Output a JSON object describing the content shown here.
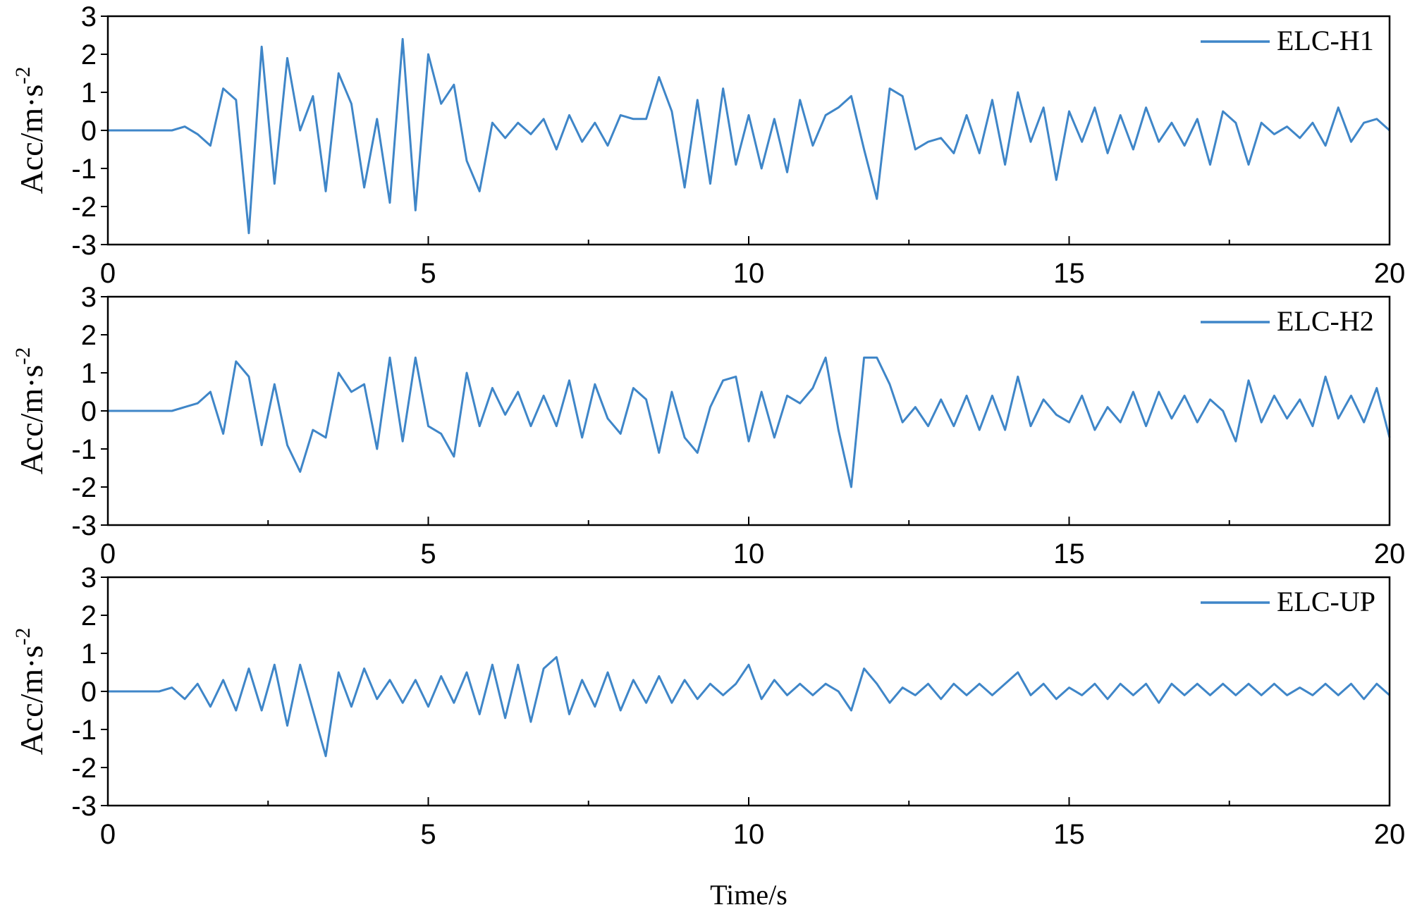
{
  "chart_data": [
    {
      "type": "line",
      "x": [
        0,
        0.2,
        0.4,
        0.6,
        0.8,
        1,
        1.2,
        1.4,
        1.6,
        1.8,
        2,
        2.2,
        2.4,
        2.6,
        2.8,
        3,
        3.2,
        3.4,
        3.6,
        3.8,
        4,
        4.2,
        4.4,
        4.6,
        4.8,
        5,
        5.2,
        5.4,
        5.6,
        5.8,
        6,
        6.2,
        6.4,
        6.6,
        6.8,
        7,
        7.2,
        7.4,
        7.6,
        7.8,
        8,
        8.2,
        8.4,
        8.6,
        8.8,
        9,
        9.2,
        9.4,
        9.6,
        9.8,
        10,
        10.2,
        10.4,
        10.6,
        10.8,
        11,
        11.2,
        11.4,
        11.6,
        11.8,
        12,
        12.2,
        12.4,
        12.6,
        12.8,
        13,
        13.2,
        13.4,
        13.6,
        13.8,
        14,
        14.2,
        14.4,
        14.6,
        14.8,
        15,
        15.2,
        15.4,
        15.6,
        15.8,
        16,
        16.2,
        16.4,
        16.6,
        16.8,
        17,
        17.2,
        17.4,
        17.6,
        17.8,
        18,
        18.2,
        18.4,
        18.6,
        18.8,
        19,
        19.2,
        19.4,
        19.6,
        19.8,
        20
      ],
      "series": [
        {
          "name": "ELC-H1",
          "color": "#3f86c8",
          "values": [
            0,
            0,
            0,
            0,
            0,
            0,
            0.1,
            -0.1,
            -0.4,
            1.1,
            0.8,
            -2.7,
            2.2,
            -1.4,
            1.9,
            0.0,
            0.9,
            -1.6,
            1.5,
            0.7,
            -1.5,
            0.3,
            -1.9,
            2.4,
            -2.1,
            2.0,
            0.7,
            1.2,
            -0.8,
            -1.6,
            0.2,
            -0.2,
            0.2,
            -0.1,
            0.3,
            -0.5,
            0.4,
            -0.3,
            0.2,
            -0.4,
            0.4,
            0.3,
            0.3,
            1.4,
            0.5,
            -1.5,
            0.8,
            -1.4,
            1.1,
            -0.9,
            0.4,
            -1.0,
            0.3,
            -1.1,
            0.8,
            -0.4,
            0.4,
            0.6,
            0.9,
            -0.5,
            -1.8,
            1.1,
            0.9,
            -0.5,
            -0.3,
            -0.2,
            -0.6,
            0.4,
            -0.6,
            0.8,
            -0.9,
            1.0,
            -0.3,
            0.6,
            -1.3,
            0.5,
            -0.3,
            0.6,
            -0.6,
            0.4,
            -0.5,
            0.6,
            -0.3,
            0.2,
            -0.4,
            0.3,
            -0.9,
            0.5,
            0.2,
            -0.9,
            0.2,
            -0.1,
            0.1,
            -0.2,
            0.2,
            -0.4,
            0.6,
            -0.3,
            0.2,
            0.3,
            0.0
          ]
        }
      ],
      "xlim": [
        0,
        20
      ],
      "xticks": [
        0,
        5,
        10,
        15,
        20
      ],
      "xminorticks": [
        2.5,
        7.5,
        12.5,
        17.5
      ],
      "ylim": [
        -3,
        3
      ],
      "yticks": [
        -3,
        -2,
        -1,
        0,
        1,
        2,
        3
      ],
      "ylabel": "Acc/m·s",
      "ylabel_superscript": "-2",
      "legend": "upper right"
    },
    {
      "type": "line",
      "x": [
        0,
        0.2,
        0.4,
        0.6,
        0.8,
        1,
        1.2,
        1.4,
        1.6,
        1.8,
        2,
        2.2,
        2.4,
        2.6,
        2.8,
        3,
        3.2,
        3.4,
        3.6,
        3.8,
        4,
        4.2,
        4.4,
        4.6,
        4.8,
        5,
        5.2,
        5.4,
        5.6,
        5.8,
        6,
        6.2,
        6.4,
        6.6,
        6.8,
        7,
        7.2,
        7.4,
        7.6,
        7.8,
        8,
        8.2,
        8.4,
        8.6,
        8.8,
        9,
        9.2,
        9.4,
        9.6,
        9.8,
        10,
        10.2,
        10.4,
        10.6,
        10.8,
        11,
        11.2,
        11.4,
        11.6,
        11.8,
        12,
        12.2,
        12.4,
        12.6,
        12.8,
        13,
        13.2,
        13.4,
        13.6,
        13.8,
        14,
        14.2,
        14.4,
        14.6,
        14.8,
        15,
        15.2,
        15.4,
        15.6,
        15.8,
        16,
        16.2,
        16.4,
        16.6,
        16.8,
        17,
        17.2,
        17.4,
        17.6,
        17.8,
        18,
        18.2,
        18.4,
        18.6,
        18.8,
        19,
        19.2,
        19.4,
        19.6,
        19.8,
        20
      ],
      "series": [
        {
          "name": "ELC-H2",
          "color": "#3f86c8",
          "values": [
            0,
            0,
            0,
            0,
            0,
            0,
            0.1,
            0.2,
            0.5,
            -0.6,
            1.3,
            0.9,
            -0.9,
            0.7,
            -0.9,
            -1.6,
            -0.5,
            -0.7,
            1.0,
            0.5,
            0.7,
            -1.0,
            1.4,
            -0.8,
            1.4,
            -0.4,
            -0.6,
            -1.2,
            1.0,
            -0.4,
            0.6,
            -0.1,
            0.5,
            -0.4,
            0.4,
            -0.4,
            0.8,
            -0.7,
            0.7,
            -0.2,
            -0.6,
            0.6,
            0.3,
            -1.1,
            0.5,
            -0.7,
            -1.1,
            0.1,
            0.8,
            0.9,
            -0.8,
            0.5,
            -0.7,
            0.4,
            0.2,
            0.6,
            1.4,
            -0.5,
            -2.0,
            1.4,
            1.4,
            0.7,
            -0.3,
            0.1,
            -0.4,
            0.3,
            -0.4,
            0.4,
            -0.5,
            0.4,
            -0.5,
            0.9,
            -0.4,
            0.3,
            -0.1,
            -0.3,
            0.4,
            -0.5,
            0.1,
            -0.3,
            0.5,
            -0.4,
            0.5,
            -0.2,
            0.4,
            -0.3,
            0.3,
            0.0,
            -0.8,
            0.8,
            -0.3,
            0.4,
            -0.2,
            0.3,
            -0.4,
            0.9,
            -0.2,
            0.4,
            -0.3,
            0.6,
            -0.7
          ]
        }
      ],
      "xlim": [
        0,
        20
      ],
      "xticks": [
        0,
        5,
        10,
        15,
        20
      ],
      "xminorticks": [
        2.5,
        7.5,
        12.5,
        17.5
      ],
      "ylim": [
        -3,
        3
      ],
      "yticks": [
        -3,
        -2,
        -1,
        0,
        1,
        2,
        3
      ],
      "ylabel": "Acc/m·s",
      "ylabel_superscript": "-2",
      "legend": "upper right"
    },
    {
      "type": "line",
      "x": [
        0,
        0.2,
        0.4,
        0.6,
        0.8,
        1,
        1.2,
        1.4,
        1.6,
        1.8,
        2,
        2.2,
        2.4,
        2.6,
        2.8,
        3,
        3.2,
        3.4,
        3.6,
        3.8,
        4,
        4.2,
        4.4,
        4.6,
        4.8,
        5,
        5.2,
        5.4,
        5.6,
        5.8,
        6,
        6.2,
        6.4,
        6.6,
        6.8,
        7,
        7.2,
        7.4,
        7.6,
        7.8,
        8,
        8.2,
        8.4,
        8.6,
        8.8,
        9,
        9.2,
        9.4,
        9.6,
        9.8,
        10,
        10.2,
        10.4,
        10.6,
        10.8,
        11,
        11.2,
        11.4,
        11.6,
        11.8,
        12,
        12.2,
        12.4,
        12.6,
        12.8,
        13,
        13.2,
        13.4,
        13.6,
        13.8,
        14,
        14.2,
        14.4,
        14.6,
        14.8,
        15,
        15.2,
        15.4,
        15.6,
        15.8,
        16,
        16.2,
        16.4,
        16.6,
        16.8,
        17,
        17.2,
        17.4,
        17.6,
        17.8,
        18,
        18.2,
        18.4,
        18.6,
        18.8,
        19,
        19.2,
        19.4,
        19.6,
        19.8,
        20
      ],
      "series": [
        {
          "name": "ELC-UP",
          "color": "#3f86c8",
          "values": [
            0,
            0,
            0,
            0,
            0,
            0.1,
            -0.2,
            0.2,
            -0.4,
            0.3,
            -0.5,
            0.6,
            -0.5,
            0.7,
            -0.9,
            0.7,
            -0.5,
            -1.7,
            0.5,
            -0.4,
            0.6,
            -0.2,
            0.3,
            -0.3,
            0.3,
            -0.4,
            0.4,
            -0.3,
            0.5,
            -0.6,
            0.7,
            -0.7,
            0.7,
            -0.8,
            0.6,
            0.9,
            -0.6,
            0.3,
            -0.4,
            0.5,
            -0.5,
            0.3,
            -0.3,
            0.4,
            -0.3,
            0.3,
            -0.2,
            0.2,
            -0.1,
            0.2,
            0.7,
            -0.2,
            0.3,
            -0.1,
            0.2,
            -0.1,
            0.2,
            0.0,
            -0.5,
            0.6,
            0.2,
            -0.3,
            0.1,
            -0.1,
            0.2,
            -0.2,
            0.2,
            -0.1,
            0.2,
            -0.1,
            0.2,
            0.5,
            -0.1,
            0.2,
            -0.2,
            0.1,
            -0.1,
            0.2,
            -0.2,
            0.2,
            -0.1,
            0.2,
            -0.3,
            0.2,
            -0.1,
            0.2,
            -0.1,
            0.2,
            -0.1,
            0.2,
            -0.1,
            0.2,
            -0.1,
            0.1,
            -0.1,
            0.2,
            -0.1,
            0.2,
            -0.2,
            0.2,
            -0.1
          ]
        }
      ],
      "xlim": [
        0,
        20
      ],
      "xticks": [
        0,
        5,
        10,
        15,
        20
      ],
      "xminorticks": [
        2.5,
        7.5,
        12.5,
        17.5
      ],
      "ylim": [
        -3,
        3
      ],
      "yticks": [
        -3,
        -2,
        -1,
        0,
        1,
        2,
        3
      ],
      "ylabel": "Acc/m·s",
      "ylabel_superscript": "-2",
      "legend": "upper right",
      "xlabel": "Time/s"
    }
  ]
}
